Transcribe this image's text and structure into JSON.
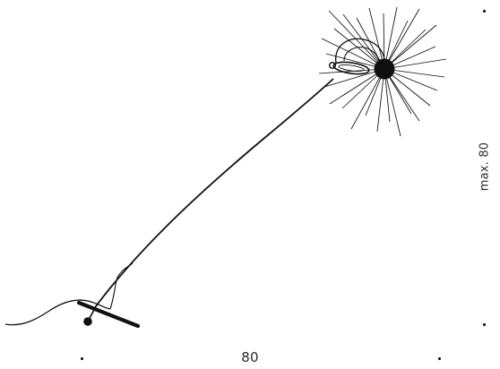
{
  "dimensions": {
    "width_label": "80",
    "height_label": "max. 80"
  },
  "colors": {
    "ink": "#111111",
    "label": "#2b2b2b",
    "background": "#ffffff"
  },
  "icons": {
    "lamp": "floor-lamp-drawing"
  }
}
